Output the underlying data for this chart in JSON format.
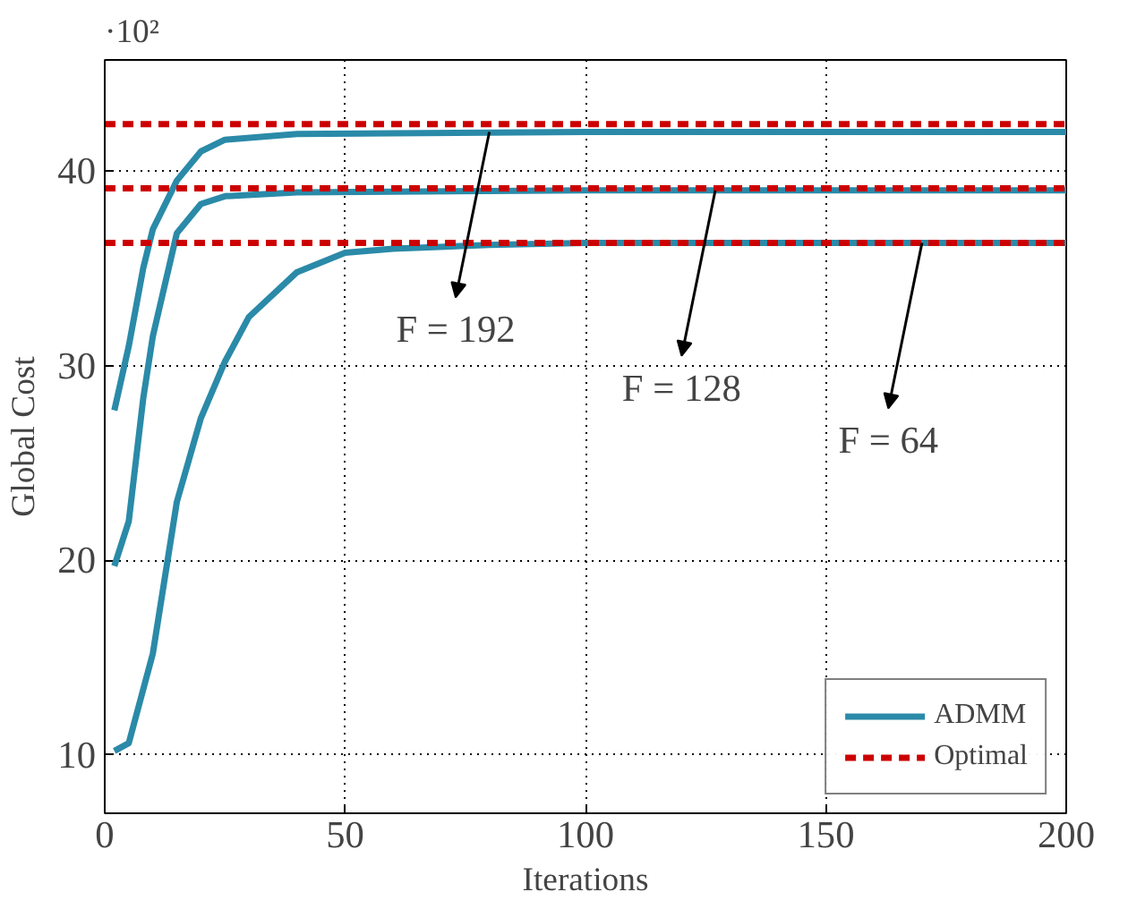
{
  "chart_data": {
    "type": "line",
    "xlabel": "Iterations",
    "ylabel": "Global Cost",
    "xlim": [
      0,
      200
    ],
    "ylim": [
      7,
      45.7
    ],
    "xticks": [
      0,
      50,
      100,
      150,
      200
    ],
    "yticks": [
      10,
      20,
      30,
      40
    ],
    "grid": true,
    "legend": "bottom right",
    "series": [
      {
        "name": "ADMM",
        "color": "#2a8aa8",
        "line_style": "solid",
        "x": [
          2,
          5,
          10,
          15,
          20,
          25,
          30,
          40,
          50,
          60,
          80,
          100,
          150,
          200
        ],
        "values": [
          10.2,
          10.6,
          15.2,
          23,
          27.3,
          30.2,
          32.5,
          34.8,
          35.8,
          36.0,
          36.2,
          36.3,
          36.3,
          36.3
        ]
      },
      {
        "color": "#2a8aa8",
        "line_style": "solid",
        "x": [
          2,
          5,
          8,
          10,
          15,
          20,
          25,
          40,
          100,
          200
        ],
        "values": [
          19.7,
          22,
          28.3,
          31.5,
          36.8,
          38.3,
          38.7,
          38.9,
          39.0,
          39.0
        ]
      },
      {
        "color": "#2a8aa8",
        "line_style": "solid",
        "x": [
          2,
          5,
          8,
          10,
          15,
          20,
          25,
          40,
          100,
          200
        ],
        "values": [
          27.7,
          31,
          35,
          37,
          39.5,
          41.0,
          41.6,
          41.9,
          42.0,
          42.0
        ]
      },
      {
        "name": "Optimal",
        "color": "#cc0000",
        "line_style": "dashed",
        "x": [
          0,
          200
        ],
        "values": [
          42.4,
          42.4
        ]
      },
      {
        "color": "#cc0000",
        "line_style": "dashed",
        "x": [
          0,
          200
        ],
        "values": [
          39.1,
          39.1
        ]
      },
      {
        "color": "#cc0000",
        "line_style": "dashed",
        "x": [
          0,
          200
        ],
        "values": [
          36.3,
          36.3
        ]
      }
    ],
    "annotations": [
      "·10²",
      {
        "text": "F = 192",
        "x": 80,
        "y": 42.0
      },
      {
        "text": "F = 128",
        "x": 127,
        "y": 39.0
      },
      {
        "text": "F = 64",
        "x": 170,
        "y": 36.3
      }
    ]
  }
}
